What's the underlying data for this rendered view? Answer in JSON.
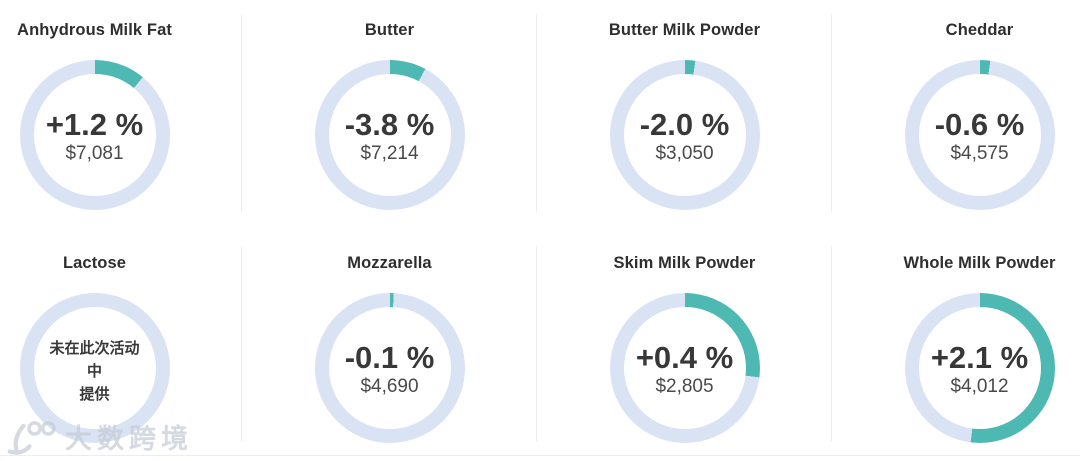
{
  "colors": {
    "arc": "#4eb8b3",
    "ring": "#d9e3f4",
    "title_text": "#2e2e2e",
    "value_text": "#383838",
    "divider": "#ededed"
  },
  "watermark": {
    "logo": "100",
    "text": "大数跨境"
  },
  "chart_data": [
    {
      "type": "donut",
      "title": "Anhydrous Milk Fat",
      "change": "+1.2 %",
      "price": "$7,081",
      "arc_fraction": 0.11,
      "available": true
    },
    {
      "type": "donut",
      "title": "Butter",
      "change": "-3.8 %",
      "price": "$7,214",
      "arc_fraction": 0.078,
      "available": true
    },
    {
      "type": "donut",
      "title": "Butter Milk Powder",
      "change": "-2.0 %",
      "price": "$3,050",
      "arc_fraction": 0.022,
      "available": true
    },
    {
      "type": "donut",
      "title": "Cheddar",
      "change": "-0.6 %",
      "price": "$4,575",
      "arc_fraction": 0.022,
      "available": true
    },
    {
      "type": "donut",
      "title": "Lactose",
      "change": null,
      "price": null,
      "arc_fraction": 0,
      "available": false,
      "unavailable_lines": [
        "未在此次活动",
        "中",
        "提供"
      ]
    },
    {
      "type": "donut",
      "title": "Mozzarella",
      "change": "-0.1 %",
      "price": "$4,690",
      "arc_fraction": 0.008,
      "available": true
    },
    {
      "type": "donut",
      "title": "Skim Milk Powder",
      "change": "+0.4 %",
      "price": "$2,805",
      "arc_fraction": 0.27,
      "available": true
    },
    {
      "type": "donut",
      "title": "Whole Milk Powder",
      "change": "+2.1 %",
      "price": "$4,012",
      "arc_fraction": 0.52,
      "available": true
    }
  ]
}
